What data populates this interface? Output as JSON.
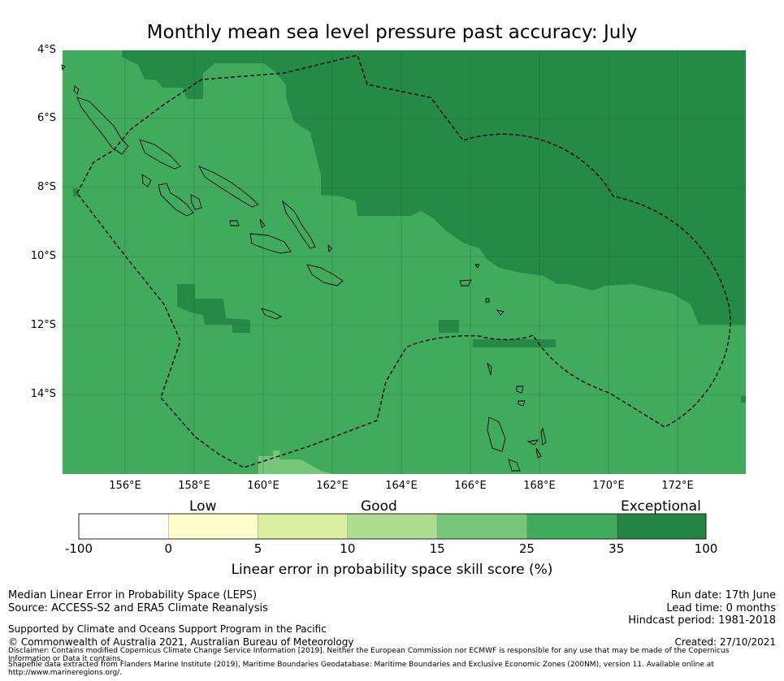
{
  "title": "Monthly mean sea level pressure past accuracy: July",
  "map": {
    "lat_labels": [
      "4°S",
      "6°S",
      "8°S",
      "10°S",
      "12°S",
      "14°S"
    ],
    "lon_labels": [
      "156°E",
      "158°E",
      "160°E",
      "162°E",
      "164°E",
      "166°E",
      "168°E",
      "170°E",
      "172°E"
    ],
    "colors": {
      "exceptional": "#248a45",
      "very_good": "#41ab5d",
      "good_mid": "#78c679",
      "coast": "#000000",
      "eez": "#000000"
    }
  },
  "colorbar": {
    "categories": [
      "Low",
      "Good",
      "Exceptional"
    ],
    "ticks": [
      "-100",
      "0",
      "5",
      "10",
      "15",
      "25",
      "35",
      "100"
    ],
    "colors": [
      "#ffffff",
      "#ffffcc",
      "#d9f0a3",
      "#addd8e",
      "#78c679",
      "#41ab5d",
      "#238443"
    ],
    "title": "Linear error in probability space skill score (%)"
  },
  "info": {
    "method": "Median Linear Error in Probability Space (LEPS)",
    "source": "Source: ACCESS-S2 and ERA5 Climate Reanalysis",
    "run_date": "Run date: 17th June",
    "lead_time": "Lead time: 0 months",
    "hindcast": "Hindcast period: 1981-2018",
    "supported": "Supported by Climate and Oceans Support Program in the Pacific",
    "copyright": "© Commonwealth of Australia 2021, Australian Bureau of Meteorology",
    "created": "Created: 27/10/2021",
    "disclaimer": "Disclaimer: Contains modified Copernicus Climate Change Service Information [2019]. Neither the European Commission nor ECMWF is responsible for any use that may be made of the Copernicus Information or Data it contains.",
    "shapefile": "Shapefile data extracted from Flanders Marine Institute (2019), Maritime Boundaries Geodatabase: Maritime Boundaries and Exclusive Economic Zones (200NM), version 11. Available online at http://www.marineregions.org/."
  }
}
